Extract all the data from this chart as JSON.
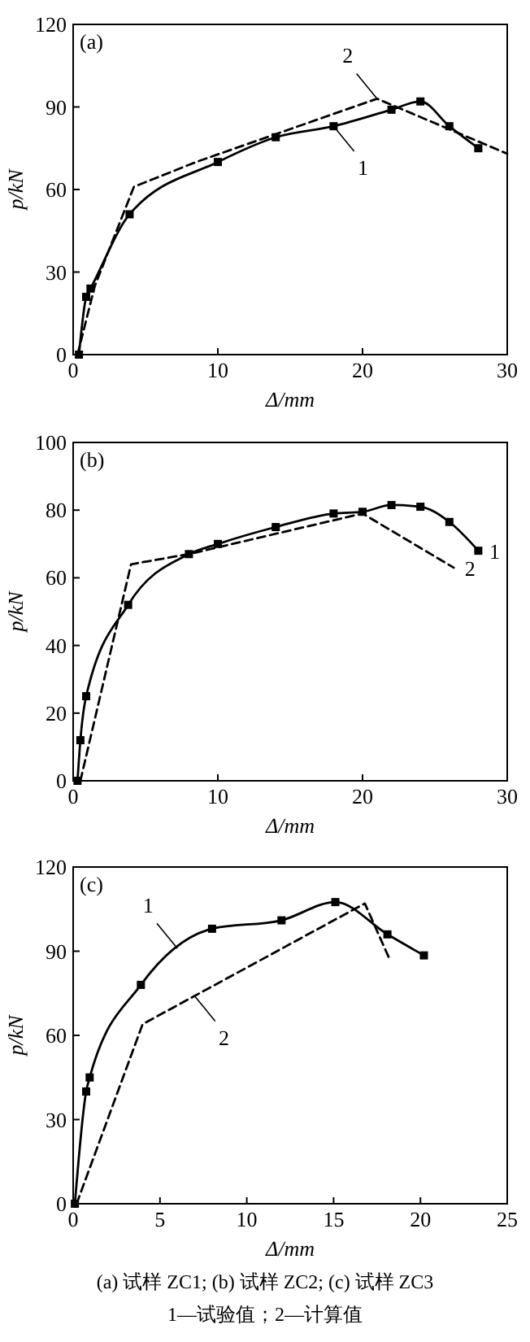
{
  "chart_data": [
    {
      "type": "line",
      "title": "(a)",
      "xlabel": "Δ/mm",
      "ylabel": "p/kN",
      "xlim": [
        0,
        30
      ],
      "xticks": [
        0,
        10,
        20,
        30
      ],
      "ylim": [
        0,
        120
      ],
      "yticks": [
        0,
        30,
        60,
        90,
        120
      ],
      "series": [
        {
          "color": "#000000",
          "marker": "square",
          "line_style": "solid",
          "x": [
            0.4,
            0.9,
            1.2,
            3.9,
            10,
            14,
            18,
            22,
            24,
            26,
            28
          ],
          "values": [
            0,
            21,
            24,
            51,
            70,
            79,
            83,
            89,
            92,
            83,
            75
          ]
        },
        {
          "color": "#000000",
          "marker": "none",
          "line_style": "dashed",
          "x": [
            0.3,
            1.5,
            4.2,
            8.5,
            21,
            30
          ],
          "values": [
            0,
            25,
            61,
            70,
            93,
            73
          ]
        }
      ],
      "annotations": [
        {
          "text": "2",
          "x": 21,
          "y": 93
        },
        {
          "text": "1",
          "x": 18,
          "y": 83
        }
      ]
    },
    {
      "type": "line",
      "title": "(b)",
      "xlabel": "Δ/mm",
      "ylabel": "p/kN",
      "xlim": [
        0,
        30
      ],
      "xticks": [
        0,
        10,
        20,
        30
      ],
      "ylim": [
        0,
        100
      ],
      "yticks": [
        0,
        20,
        40,
        60,
        80,
        100
      ],
      "series": [
        {
          "color": "#000000",
          "marker": "square",
          "line_style": "solid",
          "x": [
            0.3,
            0.5,
            0.9,
            3.8,
            8,
            10,
            14,
            18,
            20,
            22,
            24,
            26,
            28
          ],
          "values": [
            0,
            12,
            25,
            52,
            67,
            70,
            75,
            79,
            79.5,
            81.5,
            81,
            76.5,
            68
          ]
        },
        {
          "color": "#000000",
          "marker": "none",
          "line_style": "dashed",
          "x": [
            0.5,
            4,
            8,
            20,
            26.3
          ],
          "values": [
            0,
            64,
            67,
            79,
            63
          ]
        }
      ],
      "annotations": [
        {
          "text": "1",
          "x": 28,
          "y": 68
        },
        {
          "text": "2",
          "x": 26.3,
          "y": 63
        }
      ]
    },
    {
      "type": "line",
      "title": "(c)",
      "xlabel": "Δ/mm",
      "ylabel": "p/kN",
      "xlim": [
        0,
        25
      ],
      "xticks": [
        0,
        5,
        10,
        15,
        20,
        25
      ],
      "ylim": [
        0,
        120
      ],
      "yticks": [
        0,
        30,
        60,
        90,
        120
      ],
      "series": [
        {
          "color": "#000000",
          "marker": "square",
          "line_style": "solid",
          "x": [
            0.1,
            0.75,
            0.95,
            3.9,
            8,
            12,
            15.1,
            18.1,
            20.2
          ],
          "values": [
            0,
            40,
            45,
            78,
            98,
            101,
            107.5,
            96,
            88.5
          ]
        },
        {
          "color": "#000000",
          "marker": "none",
          "line_style": "dashed",
          "x": [
            0.2,
            4,
            16.8,
            18.2
          ],
          "values": [
            0,
            64,
            107,
            87.5
          ]
        }
      ],
      "annotations": [
        {
          "text": "1",
          "x": 6,
          "y": 91
        },
        {
          "text": "2",
          "x": 7,
          "y": 74
        },
        "(a) 试样 ZC1; (b) 试样 ZC2; (c) 试样 ZC3",
        "1—试验值；2—计算值"
      ]
    }
  ]
}
